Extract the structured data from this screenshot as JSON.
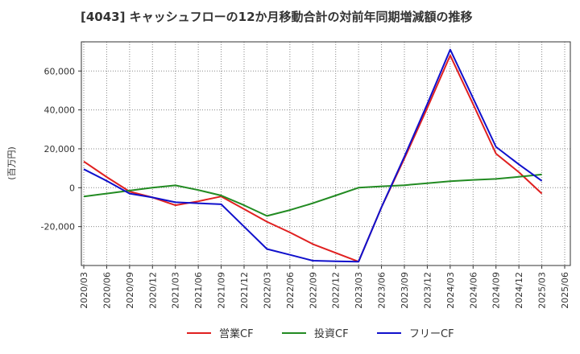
{
  "chart_data": {
    "type": "line",
    "title": "[4043]  キャッシュフローの12か月移動合計の対前年同期増減額の推移",
    "ylabel": "(百万円)",
    "xlabel": "",
    "ylim": [
      -40000,
      75000
    ],
    "yticks": [
      -20000,
      0,
      20000,
      40000,
      60000
    ],
    "ytick_labels": [
      "-20,000",
      "0",
      "20,000",
      "40,000",
      "60,000"
    ],
    "categories": [
      "2020/03",
      "2020/06",
      "2020/09",
      "2020/12",
      "2021/03",
      "2021/06",
      "2021/09",
      "2021/12",
      "2022/03",
      "2022/06",
      "2022/09",
      "2022/12",
      "2023/03",
      "2023/06",
      "2023/09",
      "2023/12",
      "2024/03",
      "2024/06",
      "2024/09",
      "2024/12",
      "2025/03",
      "2025/06"
    ],
    "grid": true,
    "legend_position": "bottom",
    "series": [
      {
        "name": "営業CF",
        "color": "#e02020",
        "values": [
          13500,
          5500,
          -2000,
          -5000,
          -9000,
          -7000,
          -4500,
          -11000,
          -17500,
          -23000,
          -29000,
          -33500,
          -38000,
          -10000,
          15000,
          41000,
          68000,
          43000,
          17500,
          8000,
          -3000,
          null
        ]
      },
      {
        "name": "投資CF",
        "color": "#228b22",
        "values": [
          -4500,
          -3000,
          -1500,
          0,
          1200,
          -1200,
          -4000,
          -9000,
          -14500,
          -11500,
          -8000,
          -4000,
          0,
          700,
          1300,
          2300,
          3300,
          4000,
          4500,
          5600,
          6800,
          null
        ]
      },
      {
        "name": "フリーCF",
        "color": "#1010cc",
        "values": [
          9500,
          3500,
          -3000,
          -5000,
          -7500,
          -8000,
          -8500,
          -20000,
          -31500,
          -34500,
          -37500,
          -37800,
          -38000,
          -10000,
          16000,
          43000,
          71000,
          46000,
          21000,
          12000,
          3500,
          null
        ]
      }
    ]
  }
}
